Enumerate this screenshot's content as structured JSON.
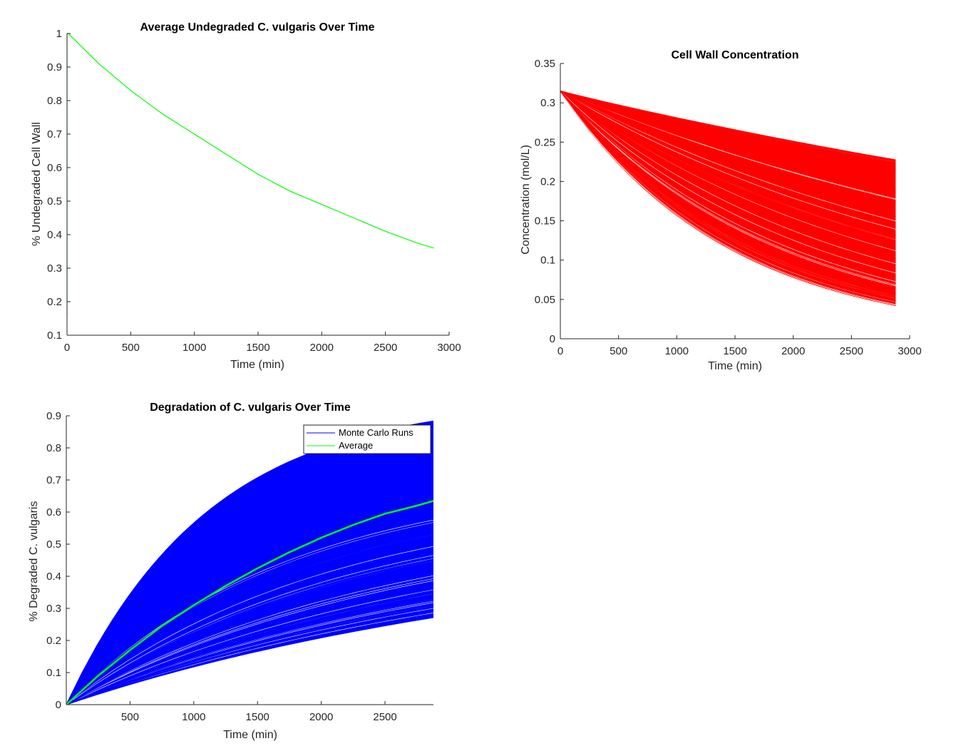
{
  "chart_data": [
    {
      "type": "line",
      "title": "Average Undegraded C. vulgaris Over Time",
      "xlabel": "Time (min)",
      "ylabel": "% Undegraded Cell Wall",
      "xlim": [
        0,
        3000
      ],
      "ylim": [
        0.1,
        1
      ],
      "xticks": [
        "0",
        "500",
        "1000",
        "1500",
        "2000",
        "2500",
        "3000"
      ],
      "yticks": [
        "0.1",
        "0.2",
        "0.3",
        "0.4",
        "0.5",
        "0.6",
        "0.7",
        "0.8",
        "0.9",
        "1"
      ],
      "grid": false,
      "legend": "none",
      "series": [
        {
          "color": "#00ff00",
          "x": [
            0,
            0,
            10,
            250,
            500,
            750,
            1000,
            1250,
            1500,
            1750,
            2000,
            2250,
            2500,
            2750,
            2880
          ],
          "y": [
            0.16,
            1.0,
            1.0,
            0.91,
            0.83,
            0.76,
            0.7,
            0.64,
            0.58,
            0.53,
            0.49,
            0.45,
            0.41,
            0.375,
            0.36
          ]
        }
      ]
    },
    {
      "type": "line",
      "title": "Cell Wall Concentration",
      "xlabel": "Time (min)",
      "ylabel": "Concentration (mol/L)",
      "xlim": [
        0,
        3000
      ],
      "ylim": [
        0,
        0.35
      ],
      "xticks": [
        "0",
        "500",
        "1000",
        "1500",
        "2000",
        "2500",
        "3000"
      ],
      "yticks": [
        "0",
        "0.05",
        "0.1",
        "0.15",
        "0.2",
        "0.25",
        "0.3",
        "0.35"
      ],
      "grid": false,
      "legend": "none",
      "color": "#ff0000",
      "x_end": 2880,
      "start_value": 0.315,
      "end_value_range": [
        0.042,
        0.228
      ],
      "run_count": 240
    },
    {
      "type": "line",
      "title": "Degradation of C. vulgaris Over Time",
      "xlabel": "Time (min)",
      "ylabel": "% Degraded C. vulgaris",
      "xlim": [
        0,
        2880
      ],
      "ylim": [
        0,
        0.9
      ],
      "xticks": [
        "500",
        "1000",
        "1500",
        "2000",
        "2500"
      ],
      "yticks": [
        "0",
        "0.1",
        "0.2",
        "0.3",
        "0.4",
        "0.5",
        "0.6",
        "0.7",
        "0.8",
        "0.9"
      ],
      "grid": false,
      "legend": "top-right",
      "series": [
        {
          "name": "Monte Carlo Runs",
          "color": "#0000ff",
          "end_value_range": [
            0.27,
            0.885
          ],
          "run_count": 240
        },
        {
          "name": "Average",
          "color": "#00ff00",
          "x": [
            0,
            250,
            500,
            750,
            1000,
            1250,
            1500,
            1750,
            2000,
            2250,
            2500,
            2750,
            2880
          ],
          "y": [
            0,
            0.09,
            0.17,
            0.245,
            0.31,
            0.37,
            0.425,
            0.475,
            0.52,
            0.56,
            0.595,
            0.62,
            0.635
          ]
        }
      ]
    }
  ]
}
